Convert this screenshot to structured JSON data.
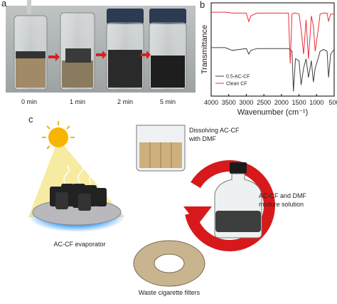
{
  "panel_a": {
    "label": "a",
    "times": [
      "0 min",
      "1 min",
      "2 min",
      "5 min"
    ]
  },
  "panel_b": {
    "label": "b"
  },
  "chart_data": {
    "type": "line",
    "xlabel": "Wavenumber (cm⁻¹)",
    "ylabel": "Transmittance",
    "x": [
      4000,
      3600,
      3400,
      3200,
      3000,
      2930,
      2870,
      2700,
      2400,
      2200,
      2000,
      1800,
      1750,
      1700,
      1660,
      1600,
      1500,
      1440,
      1370,
      1300,
      1230,
      1150,
      1090,
      1040,
      960,
      900,
      800,
      700,
      660,
      600,
      500
    ],
    "series": [
      {
        "name": "0.5-AC-CF",
        "color": "#404040",
        "values": [
          52,
          52,
          49,
          50,
          51,
          45,
          49,
          51,
          51,
          51,
          51,
          51,
          50,
          48,
          5,
          40,
          38,
          12,
          30,
          40,
          20,
          38,
          15,
          30,
          40,
          48,
          50,
          48,
          20,
          45,
          50
        ]
      },
      {
        "name": "Clean CF",
        "color": "#e8303a",
        "values": [
          90,
          90,
          89,
          89,
          89,
          80,
          86,
          89,
          89,
          89,
          89,
          89,
          35,
          88,
          89,
          89,
          88,
          72,
          45,
          82,
          40,
          86,
          75,
          48,
          70,
          88,
          89,
          89,
          80,
          88,
          88
        ]
      }
    ],
    "xlim": [
      4000,
      500
    ],
    "xticks": [
      4000,
      3500,
      3000,
      2500,
      2000,
      1500,
      1000,
      500
    ],
    "ylim": [
      0,
      100
    ],
    "legend": "lower-left"
  },
  "panel_c": {
    "label": "c",
    "dissolving": [
      "Dissolving AC-CF",
      "with DMF"
    ],
    "mixture": [
      "AC-CF and DMF",
      "mixture solution"
    ],
    "evaporator": "AC-CF evaporator",
    "waste": "Waste cigarette filters"
  }
}
